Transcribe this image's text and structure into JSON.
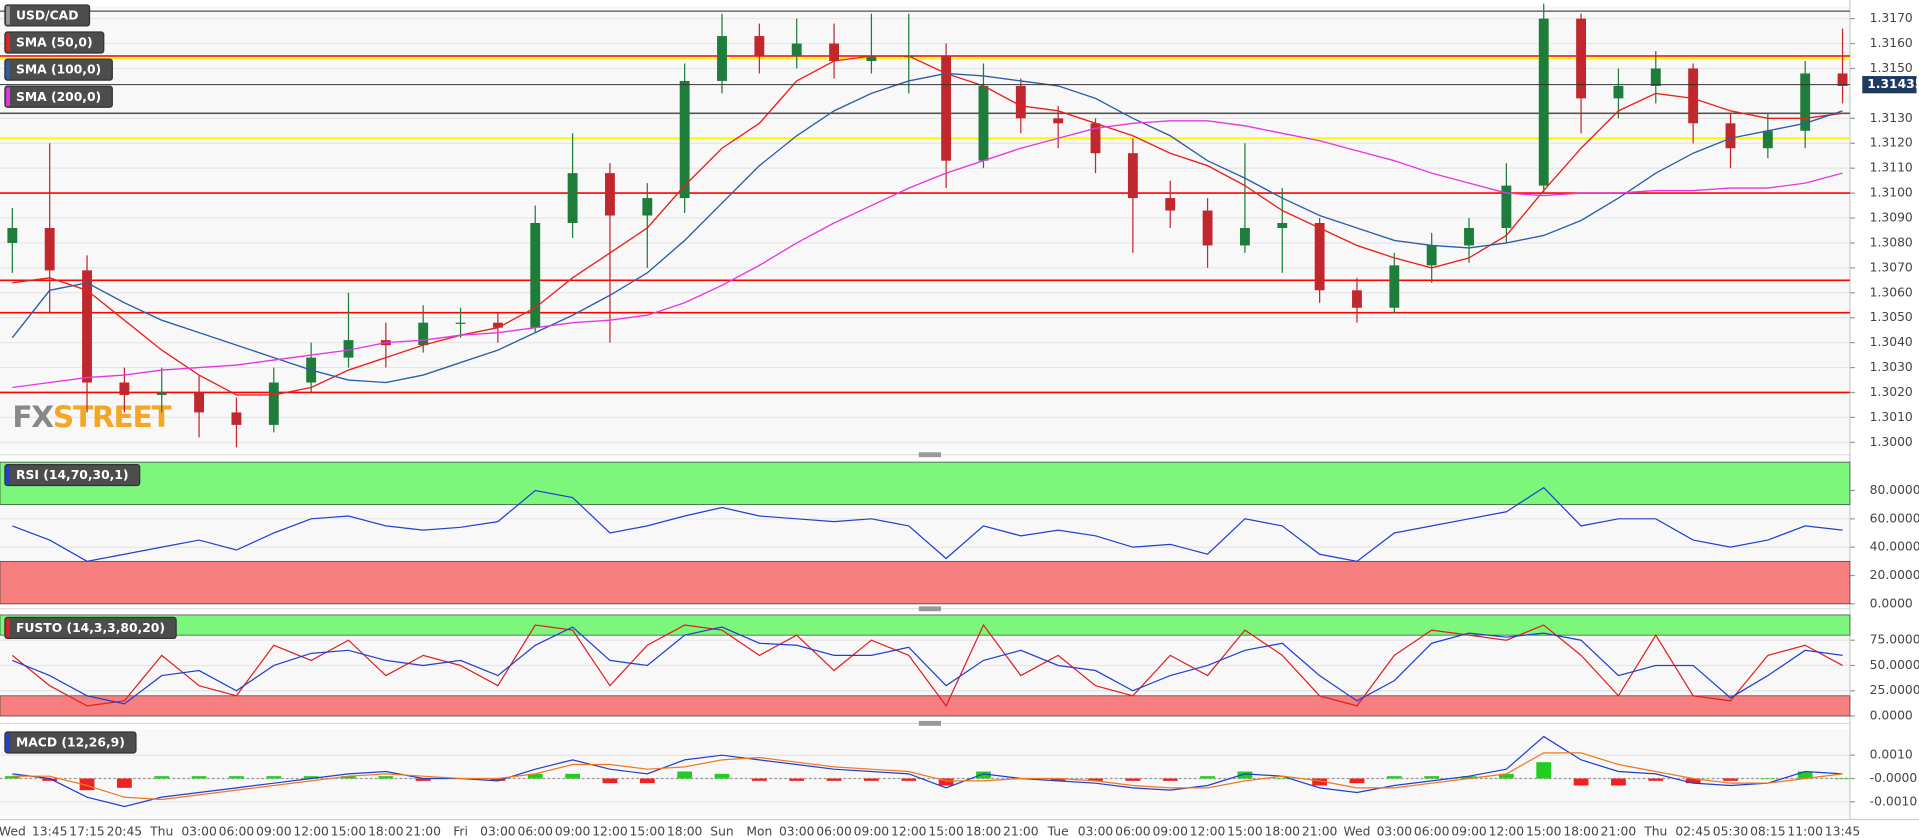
{
  "chart_data": [
    {
      "type": "candlestick",
      "title": "USD/CAD",
      "categories": [
        "Wed",
        "13:45",
        "17:15",
        "20:45",
        "Thu",
        "03:00",
        "06:00",
        "09:00",
        "12:00",
        "15:00",
        "18:00",
        "21:00",
        "Fri",
        "03:00",
        "06:00",
        "09:00",
        "12:00",
        "15:00",
        "18:00",
        "Sun",
        "Mon",
        "03:00",
        "06:00",
        "09:00",
        "12:00",
        "15:00",
        "18:00",
        "21:00",
        "Tue",
        "03:00",
        "06:00",
        "09:00",
        "12:00",
        "15:00",
        "18:00",
        "21:00",
        "Wed",
        "03:00",
        "06:00",
        "09:00",
        "12:00",
        "15:00",
        "18:00",
        "21:00",
        "Thu",
        "02:45",
        "05:30",
        "08:15",
        "11:00",
        "13:45"
      ],
      "open": [
        1.308,
        1.3086,
        1.3069,
        1.3024,
        1.3019,
        1.302,
        1.3012,
        1.3007,
        1.3024,
        1.3034,
        1.3041,
        1.3039,
        1.3048,
        1.3048,
        1.3046,
        1.3088,
        1.3108,
        1.3091,
        1.3098,
        1.3145,
        1.3163,
        1.3155,
        1.316,
        1.3153,
        1.3155,
        1.3155,
        1.3113,
        1.3143,
        1.313,
        1.3128,
        1.3116,
        1.3098,
        1.3093,
        1.3079,
        1.3086,
        1.3088,
        1.3061,
        1.3054,
        1.3071,
        1.3079,
        1.3086,
        1.3103,
        1.317,
        1.3138,
        1.3143,
        1.315,
        1.3128,
        1.3118,
        1.3125,
        1.3148
      ],
      "high": [
        1.3094,
        1.312,
        1.3075,
        1.303,
        1.303,
        1.3027,
        1.3018,
        1.303,
        1.304,
        1.306,
        1.3048,
        1.3055,
        1.3054,
        1.3052,
        1.3095,
        1.3124,
        1.3112,
        1.3104,
        1.3152,
        1.3172,
        1.3168,
        1.317,
        1.3168,
        1.3172,
        1.3172,
        1.316,
        1.3152,
        1.3146,
        1.3135,
        1.313,
        1.3122,
        1.3105,
        1.3098,
        1.312,
        1.3102,
        1.309,
        1.3066,
        1.3076,
        1.3084,
        1.309,
        1.3112,
        1.3176,
        1.3172,
        1.315,
        1.3157,
        1.3152,
        1.3132,
        1.3132,
        1.3153,
        1.3166
      ],
      "low": [
        1.3068,
        1.3052,
        1.3012,
        1.3012,
        1.3012,
        1.3002,
        1.2998,
        1.3004,
        1.302,
        1.303,
        1.303,
        1.3036,
        1.3042,
        1.304,
        1.3044,
        1.3082,
        1.304,
        1.307,
        1.3092,
        1.314,
        1.3148,
        1.315,
        1.3146,
        1.3148,
        1.314,
        1.3102,
        1.311,
        1.3124,
        1.3118,
        1.3108,
        1.3076,
        1.3086,
        1.307,
        1.3076,
        1.3068,
        1.3056,
        1.3048,
        1.3052,
        1.3064,
        1.3072,
        1.308,
        1.31,
        1.3124,
        1.313,
        1.3136,
        1.312,
        1.311,
        1.3114,
        1.3118,
        1.3136
      ],
      "close": [
        1.3086,
        1.3069,
        1.3024,
        1.3019,
        1.302,
        1.3012,
        1.3007,
        1.3024,
        1.3034,
        1.3041,
        1.3039,
        1.3048,
        1.3048,
        1.3046,
        1.3088,
        1.3108,
        1.3091,
        1.3098,
        1.3145,
        1.3163,
        1.3155,
        1.316,
        1.3153,
        1.3155,
        1.3155,
        1.3113,
        1.3143,
        1.313,
        1.3128,
        1.3116,
        1.3098,
        1.3093,
        1.3079,
        1.3086,
        1.3088,
        1.3061,
        1.3054,
        1.3071,
        1.3079,
        1.3086,
        1.3103,
        1.317,
        1.3138,
        1.3143,
        1.315,
        1.3128,
        1.3118,
        1.3125,
        1.3148,
        1.3143
      ],
      "up_color": "#1e7d3a",
      "down_color": "#c0282d",
      "series": [
        {
          "name": "SMA (50,0)",
          "color": "#e8221c",
          "values": [
            1.3064,
            1.3066,
            1.3061,
            1.3049,
            1.3037,
            1.3027,
            1.3019,
            1.3019,
            1.3022,
            1.3029,
            1.3034,
            1.3039,
            1.3043,
            1.3046,
            1.3054,
            1.3066,
            1.3076,
            1.3086,
            1.3103,
            1.3118,
            1.3128,
            1.3145,
            1.3153,
            1.3155,
            1.3155,
            1.3148,
            1.3143,
            1.3135,
            1.3133,
            1.3128,
            1.3123,
            1.3116,
            1.3111,
            1.3103,
            1.3093,
            1.3086,
            1.3079,
            1.3074,
            1.307,
            1.3074,
            1.3083,
            1.3101,
            1.3118,
            1.3133,
            1.314,
            1.3138,
            1.3133,
            1.313,
            1.313,
            1.3132
          ]
        },
        {
          "name": "SMA (100,0)",
          "color": "#2c5fa8",
          "values": [
            1.3042,
            1.3061,
            1.3064,
            1.3056,
            1.3049,
            1.3044,
            1.3039,
            1.3034,
            1.3029,
            1.3025,
            1.3024,
            1.3027,
            1.3032,
            1.3037,
            1.3044,
            1.3051,
            1.3059,
            1.3068,
            1.3081,
            1.3096,
            1.3111,
            1.3123,
            1.3133,
            1.314,
            1.3145,
            1.3148,
            1.3147,
            1.3145,
            1.3143,
            1.3138,
            1.313,
            1.3123,
            1.3113,
            1.3106,
            1.3098,
            1.3091,
            1.3086,
            1.3081,
            1.3079,
            1.3078,
            1.308,
            1.3083,
            1.3089,
            1.3098,
            1.3108,
            1.3116,
            1.3122,
            1.3125,
            1.3128,
            1.3133
          ]
        },
        {
          "name": "SMA (200,0)",
          "color": "#e536e5",
          "values": [
            1.3022,
            1.3024,
            1.3026,
            1.3027,
            1.3029,
            1.303,
            1.3031,
            1.3033,
            1.3035,
            1.3037,
            1.304,
            1.3041,
            1.3043,
            1.3044,
            1.3046,
            1.3048,
            1.3049,
            1.3051,
            1.3056,
            1.3063,
            1.3071,
            1.308,
            1.3088,
            1.3095,
            1.3102,
            1.3108,
            1.3113,
            1.3118,
            1.3122,
            1.3126,
            1.3128,
            1.3129,
            1.3129,
            1.3127,
            1.3124,
            1.3121,
            1.3117,
            1.3113,
            1.3108,
            1.3104,
            1.31,
            1.3099,
            1.31,
            1.31,
            1.3101,
            1.3101,
            1.3102,
            1.3102,
            1.3104,
            1.3108
          ]
        }
      ],
      "levels": [
        {
          "value": 1.3173,
          "color": "#777777"
        },
        {
          "value": 1.3155,
          "color": "#ff0000"
        },
        {
          "value": 1.3154,
          "color": "#ffff00"
        },
        {
          "value": 1.3132,
          "color": "#555555"
        },
        {
          "value": 1.3122,
          "color": "#ffff00"
        },
        {
          "value": 1.31,
          "color": "#ff0000"
        },
        {
          "value": 1.3065,
          "color": "#ff0000"
        },
        {
          "value": 1.3052,
          "color": "#ff0000"
        },
        {
          "value": 1.302,
          "color": "#ff0000"
        }
      ],
      "last_price": 1.31435,
      "ylim": [
        1.2997,
        1.3175
      ],
      "yticks": [
        {
          "value": 1.3,
          "label": "1.3000"
        },
        {
          "value": 1.301,
          "label": "1.3010"
        },
        {
          "value": 1.302,
          "label": "1.3020"
        },
        {
          "value": 1.303,
          "label": "1.3030"
        },
        {
          "value": 1.304,
          "label": "1.3040"
        },
        {
          "value": 1.305,
          "label": "1.3050"
        },
        {
          "value": 1.306,
          "label": "1.3060"
        },
        {
          "value": 1.307,
          "label": "1.3070"
        },
        {
          "value": 1.308,
          "label": "1.3080"
        },
        {
          "value": 1.309,
          "label": "1.3090"
        },
        {
          "value": 1.31,
          "label": "1.3100"
        },
        {
          "value": 1.311,
          "label": "1.3110"
        },
        {
          "value": 1.312,
          "label": "1.3120"
        },
        {
          "value": 1.313,
          "label": "1.3130"
        },
        {
          "value": 1.315,
          "label": "1.3150"
        },
        {
          "value": 1.316,
          "label": "1.3160"
        },
        {
          "value": 1.317,
          "label": "1.3170"
        }
      ],
      "watermark": [
        "FX",
        "STREET"
      ]
    },
    {
      "type": "line",
      "title": "RSI (14,70,30,1)",
      "series": [
        {
          "color": "#2040d0",
          "values": [
            55,
            45,
            30,
            35,
            40,
            45,
            38,
            50,
            60,
            62,
            55,
            52,
            54,
            58,
            80,
            75,
            50,
            55,
            62,
            68,
            62,
            60,
            58,
            60,
            55,
            32,
            55,
            48,
            52,
            48,
            40,
            42,
            35,
            60,
            55,
            35,
            30,
            50,
            55,
            60,
            65,
            82,
            55,
            60,
            60,
            45,
            40,
            45,
            55,
            52
          ]
        }
      ],
      "zones": [
        {
          "from": 70,
          "to": 100,
          "color": "#7cf77c"
        },
        {
          "from": 0,
          "to": 30,
          "color": "#f77f7f"
        }
      ],
      "ylim": [
        0,
        100
      ],
      "yticks": [
        {
          "value": 0,
          "label": "0.0000"
        },
        {
          "value": 20,
          "label": "20.0000"
        },
        {
          "value": 40,
          "label": "40.0000"
        },
        {
          "value": 60,
          "label": "60.0000"
        },
        {
          "value": 80,
          "label": "80.0000"
        }
      ]
    },
    {
      "type": "line",
      "title": "FUSTO (14,3,3,80,20)",
      "series": [
        {
          "color": "#e02020",
          "values": [
            60,
            30,
            10,
            15,
            60,
            30,
            20,
            70,
            55,
            75,
            40,
            60,
            50,
            30,
            90,
            85,
            30,
            70,
            90,
            85,
            60,
            80,
            45,
            75,
            60,
            10,
            90,
            40,
            60,
            30,
            20,
            60,
            40,
            85,
            60,
            20,
            10,
            60,
            85,
            80,
            75,
            90,
            60,
            20,
            80,
            20,
            15,
            60,
            70,
            50
          ]
        },
        {
          "color": "#2040d0",
          "values": [
            55,
            40,
            20,
            12,
            40,
            45,
            25,
            50,
            62,
            65,
            55,
            50,
            55,
            40,
            70,
            88,
            55,
            50,
            80,
            88,
            72,
            70,
            60,
            60,
            68,
            30,
            55,
            65,
            50,
            45,
            25,
            40,
            50,
            65,
            72,
            40,
            15,
            35,
            72,
            82,
            78,
            82,
            75,
            40,
            50,
            50,
            18,
            40,
            65,
            60
          ]
        }
      ],
      "zones": [
        {
          "from": 80,
          "to": 100,
          "color": "#7cf77c"
        },
        {
          "from": 0,
          "to": 20,
          "color": "#f77f7f"
        }
      ],
      "ylim": [
        0,
        100
      ],
      "yticks": [
        {
          "value": 0,
          "label": "0.0000"
        },
        {
          "value": 25,
          "label": "25.0000"
        },
        {
          "value": 50,
          "label": "50.0000"
        },
        {
          "value": 75,
          "label": "75.0000"
        }
      ]
    },
    {
      "type": "macd",
      "title": "MACD (12,26,9)",
      "series": [
        {
          "color": "#1f3fd0",
          "values": [
            0.0002,
            0.0,
            -0.0008,
            -0.0012,
            -0.0008,
            -0.0006,
            -0.0004,
            -0.0002,
            0.0,
            0.0002,
            0.0003,
            0.0,
            0.0,
            -0.0001,
            0.0004,
            0.0008,
            0.0004,
            0.0002,
            0.0008,
            0.001,
            0.0008,
            0.0006,
            0.0004,
            0.0003,
            0.0002,
            -0.0004,
            0.0002,
            0.0,
            -0.0001,
            -0.0002,
            -0.0004,
            -0.0005,
            -0.0003,
            0.0002,
            0.0001,
            -0.0004,
            -0.0006,
            -0.0003,
            -0.0001,
            0.0001,
            0.0004,
            0.0018,
            0.0008,
            0.0003,
            0.0002,
            -0.0002,
            -0.0003,
            -0.0002,
            0.0003,
            0.0002
          ]
        },
        {
          "color": "#f07820",
          "values": [
            0.0001,
            0.0001,
            -0.0003,
            -0.0008,
            -0.0009,
            -0.0007,
            -0.0005,
            -0.0003,
            -0.0001,
            0.0001,
            0.0002,
            0.0001,
            0.0,
            0.0,
            0.0002,
            0.0006,
            0.0006,
            0.0004,
            0.0005,
            0.0008,
            0.0009,
            0.0007,
            0.0005,
            0.0004,
            0.0003,
            -0.0001,
            -0.0001,
            0.0,
            0.0,
            -0.0001,
            -0.0003,
            -0.0004,
            -0.0004,
            -0.0001,
            0.0001,
            -0.0001,
            -0.0004,
            -0.0004,
            -0.0002,
            0.0,
            0.0002,
            0.0011,
            0.0011,
            0.0006,
            0.0003,
            0.0,
            -0.0002,
            -0.0002,
            0.0,
            0.0002
          ]
        }
      ],
      "histogram": {
        "up_color": "#22cc22",
        "down_color": "#ee2222",
        "values": [
          0.0001,
          -0.0001,
          -0.0005,
          -0.0004,
          0.0001,
          0.0001,
          0.0001,
          0.0001,
          0.0001,
          0.0001,
          0.0001,
          -0.0001,
          0,
          -0.0001,
          0.0002,
          0.0002,
          -0.0002,
          -0.0002,
          0.0003,
          0.0002,
          -0.0001,
          -0.0001,
          -0.0001,
          -0.0001,
          -0.0001,
          -0.0003,
          0.0003,
          0,
          -0.0001,
          -0.0001,
          -0.0001,
          -0.0001,
          0.0001,
          0.0003,
          0,
          -0.0003,
          -0.0002,
          0.0001,
          0.0001,
          0.0001,
          0.0002,
          0.0007,
          -0.0003,
          -0.0003,
          -0.0001,
          -0.0002,
          -0.0001,
          0,
          0.0003,
          0
        ]
      },
      "ylim": [
        -0.0016,
        0.0021
      ],
      "yticks": [
        {
          "value": -0.001,
          "label": "-0.0010"
        },
        {
          "value": 0,
          "label": "-0.0000"
        },
        {
          "value": 0.001,
          "label": "0.0010"
        }
      ]
    }
  ]
}
